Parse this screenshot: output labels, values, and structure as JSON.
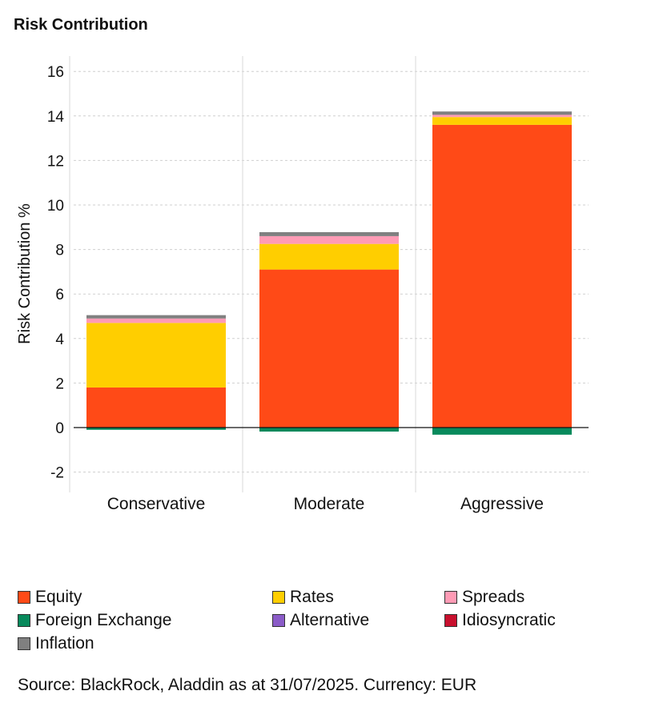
{
  "chart_data": {
    "type": "stacked-bar",
    "title": "Risk Contribution",
    "ylabel": "Risk Contribution %",
    "xlabel": "",
    "categories": [
      "Conservative",
      "Moderate",
      "Aggressive"
    ],
    "ylim": [
      -2.9,
      16.6
    ],
    "yticks": [
      -2,
      0,
      2,
      4,
      6,
      8,
      10,
      12,
      14,
      16
    ],
    "series": [
      {
        "name": "Equity",
        "color": "#ff4a17",
        "values": [
          1.8,
          7.1,
          13.6
        ]
      },
      {
        "name": "Rates",
        "color": "#ffce00",
        "values": [
          2.9,
          1.15,
          0.35
        ]
      },
      {
        "name": "Spreads",
        "color": "#ff9bb5",
        "values": [
          0.2,
          0.35,
          0.1
        ]
      },
      {
        "name": "Foreign Exchange",
        "color": "#088a5c",
        "values": [
          -0.1,
          -0.18,
          -0.32
        ]
      },
      {
        "name": "Alternative",
        "color": "#8b5cc8",
        "values": [
          0,
          0,
          0
        ]
      },
      {
        "name": "Idiosyncratic",
        "color": "#c8102e",
        "values": [
          0,
          0,
          0
        ]
      },
      {
        "name": "Inflation",
        "color": "#808080",
        "values": [
          0.15,
          0.18,
          0.15
        ]
      }
    ]
  },
  "source": "Source: BlackRock, Aladdin as at 31/07/2025. Currency: EUR"
}
